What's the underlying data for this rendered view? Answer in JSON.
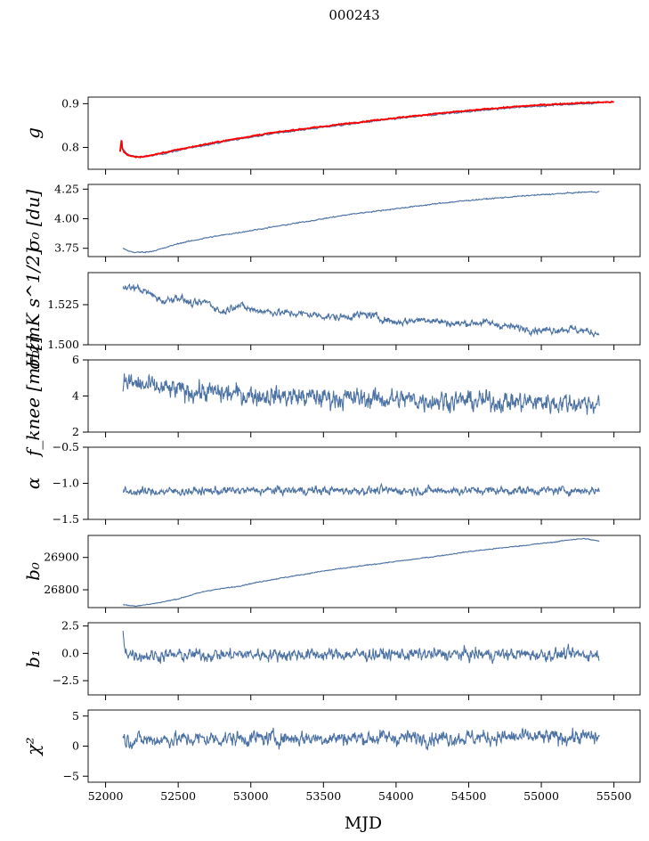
{
  "figure": {
    "title": "000243",
    "xlabel": "MJD"
  },
  "colors": {
    "series": "#4c72a4",
    "reference": "#ff0000",
    "axes": "#000000"
  },
  "chart_data": [
    {
      "type": "line",
      "ylabel": "g",
      "ylim": [
        0.75,
        0.915
      ],
      "yticks": [
        0.8,
        0.9
      ],
      "tick_decimals": 1,
      "series": [
        {
          "color": "#4c72a4",
          "x": [
            52120,
            52150,
            52200,
            52250,
            52300,
            52400,
            52500,
            52700,
            52900,
            53100,
            53300,
            53500,
            53700,
            53900,
            54100,
            54300,
            54500,
            54700,
            54900,
            55100,
            55300,
            55400
          ],
          "y": [
            0.795,
            0.785,
            0.779,
            0.778,
            0.78,
            0.786,
            0.793,
            0.806,
            0.818,
            0.829,
            0.838,
            0.846,
            0.854,
            0.862,
            0.869,
            0.876,
            0.882,
            0.888,
            0.893,
            0.897,
            0.9,
            0.902
          ],
          "noise": 0.0015
        },
        {
          "color": "#ff0000",
          "x": [
            52100,
            52110,
            52115,
            52125,
            52150,
            52200,
            52250,
            52300,
            52400,
            52500,
            52700,
            52900,
            53100,
            53300,
            53500,
            53700,
            53900,
            54100,
            54300,
            54500,
            54700,
            54900,
            55100,
            55300,
            55500
          ],
          "y": [
            0.79,
            0.82,
            0.8,
            0.79,
            0.783,
            0.778,
            0.778,
            0.781,
            0.788,
            0.795,
            0.808,
            0.82,
            0.831,
            0.84,
            0.848,
            0.856,
            0.864,
            0.871,
            0.878,
            0.884,
            0.89,
            0.895,
            0.899,
            0.902,
            0.904
          ],
          "noise": 0.001
        }
      ]
    },
    {
      "type": "line",
      "ylabel": "σ₀ [du]",
      "ylim": [
        3.68,
        4.29
      ],
      "yticks": [
        3.75,
        4.0,
        4.25
      ],
      "tick_decimals": 2,
      "series": [
        {
          "color": "#4c72a4",
          "x": [
            52120,
            52150,
            52200,
            52300,
            52400,
            52500,
            52700,
            52900,
            53100,
            53300,
            53500,
            53700,
            53900,
            54100,
            54300,
            54500,
            54700,
            54900,
            55100,
            55300,
            55400
          ],
          "y": [
            3.75,
            3.73,
            3.715,
            3.72,
            3.75,
            3.79,
            3.84,
            3.88,
            3.92,
            3.96,
            4.0,
            4.04,
            4.07,
            4.1,
            4.13,
            4.155,
            4.175,
            4.195,
            4.21,
            4.225,
            4.228
          ],
          "noise": 0.004
        }
      ]
    },
    {
      "type": "line",
      "ylabel": "σ₀[mK s^1/2]",
      "ylim": [
        1.5,
        1.545
      ],
      "yticks": [
        1.5,
        1.525
      ],
      "tick_decimals": 3,
      "series": [
        {
          "color": "#4c72a4",
          "x": [
            52120,
            52200,
            52300,
            52400,
            52500,
            52600,
            52700,
            52800,
            52900,
            53000,
            53200,
            53400,
            53600,
            53800,
            54000,
            54200,
            54400,
            54600,
            54800,
            55000,
            55200,
            55400
          ],
          "y": [
            1.535,
            1.536,
            1.532,
            1.527,
            1.53,
            1.525,
            1.527,
            1.52,
            1.525,
            1.522,
            1.52,
            1.519,
            1.517,
            1.519,
            1.514,
            1.516,
            1.513,
            1.514,
            1.511,
            1.509,
            1.51,
            1.507
          ],
          "noise": 0.0018
        }
      ]
    },
    {
      "type": "line",
      "ylabel": "f_knee [mHz]",
      "ylim": [
        2,
        6
      ],
      "yticks": [
        2,
        4,
        6
      ],
      "tick_decimals": 0,
      "series": [
        {
          "color": "#4c72a4",
          "x": [
            52120,
            52300,
            52500,
            52700,
            52900,
            53200,
            53500,
            53800,
            54100,
            54400,
            54700,
            55000,
            55400
          ],
          "y": [
            4.8,
            4.5,
            4.3,
            4.2,
            4.1,
            4.0,
            3.9,
            3.85,
            3.8,
            3.75,
            3.7,
            3.65,
            3.6
          ],
          "noise": 0.45
        }
      ]
    },
    {
      "type": "line",
      "ylabel": "α",
      "ylim": [
        -1.5,
        -0.5
      ],
      "yticks": [
        -1.5,
        -1.0,
        -0.5
      ],
      "tick_decimals": 1,
      "series": [
        {
          "color": "#4c72a4",
          "x": [
            52120,
            53000,
            54000,
            55400
          ],
          "y": [
            -1.12,
            -1.1,
            -1.1,
            -1.1
          ],
          "noise": 0.045
        }
      ]
    },
    {
      "type": "line",
      "ylabel": "b₀",
      "ylim": [
        26745,
        26968
      ],
      "yticks": [
        26800,
        26900
      ],
      "tick_decimals": 0,
      "series": [
        {
          "color": "#4c72a4",
          "x": [
            52120,
            52150,
            52200,
            52300,
            52400,
            52500,
            52600,
            52700,
            52900,
            53100,
            53300,
            53500,
            53700,
            53900,
            54100,
            54300,
            54500,
            54700,
            54900,
            55000,
            55100,
            55200,
            55300,
            55400
          ],
          "y": [
            26755,
            26752,
            26750,
            26755,
            26763,
            26772,
            26785,
            26797,
            26810,
            26828,
            26843,
            26858,
            26870,
            26882,
            26893,
            26905,
            26918,
            26928,
            26938,
            26943,
            26948,
            26955,
            26958,
            26950
          ],
          "noise": 1.2
        }
      ]
    },
    {
      "type": "line",
      "ylabel": "b₁",
      "ylim": [
        -3.8,
        2.8
      ],
      "yticks": [
        -2.5,
        0.0,
        2.5
      ],
      "tick_decimals": 1,
      "series": [
        {
          "color": "#4c72a4",
          "x": [
            52120,
            52130,
            52160,
            52250,
            53000,
            54000,
            55000,
            55400
          ],
          "y": [
            2.0,
            0.5,
            0.0,
            -0.2,
            -0.1,
            -0.1,
            -0.1,
            -0.1
          ],
          "noise": 0.45
        }
      ]
    },
    {
      "type": "line",
      "ylabel": "χ²",
      "ylim": [
        -6,
        6
      ],
      "yticks": [
        -5,
        0,
        5
      ],
      "tick_decimals": 0,
      "series": [
        {
          "color": "#4c72a4",
          "x": [
            52120,
            53000,
            54000,
            55400
          ],
          "y": [
            1.0,
            1.3,
            1.4,
            1.5
          ],
          "noise": 1.0
        }
      ]
    }
  ],
  "x_axis": {
    "xlim": [
      51880,
      55680
    ],
    "xticks": [
      52000,
      52500,
      53000,
      53500,
      54000,
      54500,
      55000,
      55500
    ]
  }
}
